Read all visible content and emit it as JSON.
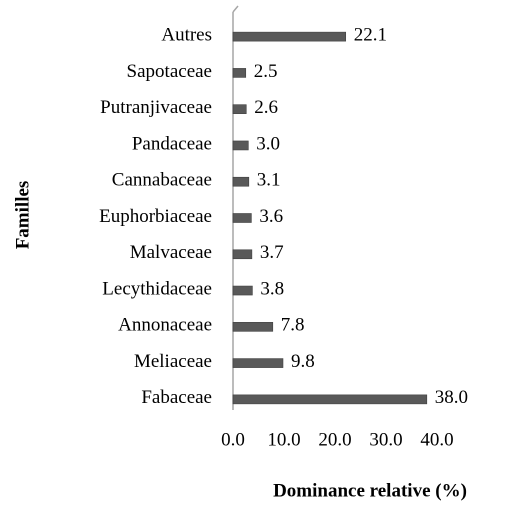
{
  "chart_data": {
    "type": "bar",
    "orientation": "horizontal",
    "categories": [
      "Autres",
      "Sapotaceae",
      "Putranjivaceae",
      "Pandaceae",
      "Cannabaceae",
      "Euphorbiaceae",
      "Malvaceae",
      "Lecythidaceae",
      "Annonaceae",
      "Meliaceae",
      "Fabaceae"
    ],
    "values": [
      22.1,
      2.5,
      2.6,
      3.0,
      3.1,
      3.6,
      3.7,
      3.8,
      7.8,
      9.8,
      38.0
    ],
    "value_labels": [
      "22.1",
      "2.5",
      "2.6",
      "3.0",
      "3.1",
      "3.6",
      "3.7",
      "3.8",
      "7.8",
      "9.8",
      "38.0"
    ],
    "color": "#595959",
    "xlim": [
      0,
      40
    ],
    "xticks": [
      {
        "value": 0,
        "label": "0.0"
      },
      {
        "value": 10,
        "label": "10.0"
      },
      {
        "value": 20,
        "label": "20.0"
      },
      {
        "value": 30,
        "label": "30.0"
      },
      {
        "value": 40,
        "label": "40.0"
      }
    ],
    "xlabel": "Dominance relative (%)",
    "ylabel": "Familles"
  }
}
